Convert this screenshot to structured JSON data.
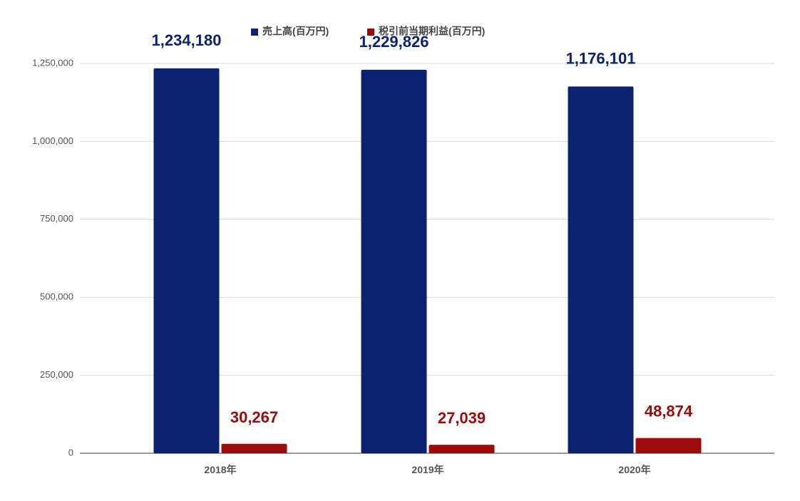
{
  "chart_data": {
    "type": "bar",
    "categories": [
      "2018年",
      "2019年",
      "2020年"
    ],
    "series": [
      {
        "name": "売上高(百万円)",
        "color": "#0b2270",
        "values": [
          1234180,
          1229826,
          1176101
        ],
        "labels": [
          "1,234,180",
          "1,229,826",
          "1,176,101"
        ]
      },
      {
        "name": "税引前当期利益(百万円)",
        "color": "#9c0a0a",
        "values": [
          30267,
          27039,
          48874
        ],
        "labels": [
          "30,267",
          "27,039",
          "48,874"
        ]
      }
    ],
    "y_ticks": [
      0,
      250000,
      500000,
      750000,
      1000000,
      1250000
    ],
    "y_tick_labels": [
      "0",
      "250,000",
      "500,000",
      "750,000",
      "1,000,000",
      "1,250,000"
    ],
    "ylim": [
      0,
      1250000
    ],
    "grid": true,
    "legend_position": "top-center",
    "title": "",
    "xlabel": "",
    "ylabel": ""
  }
}
